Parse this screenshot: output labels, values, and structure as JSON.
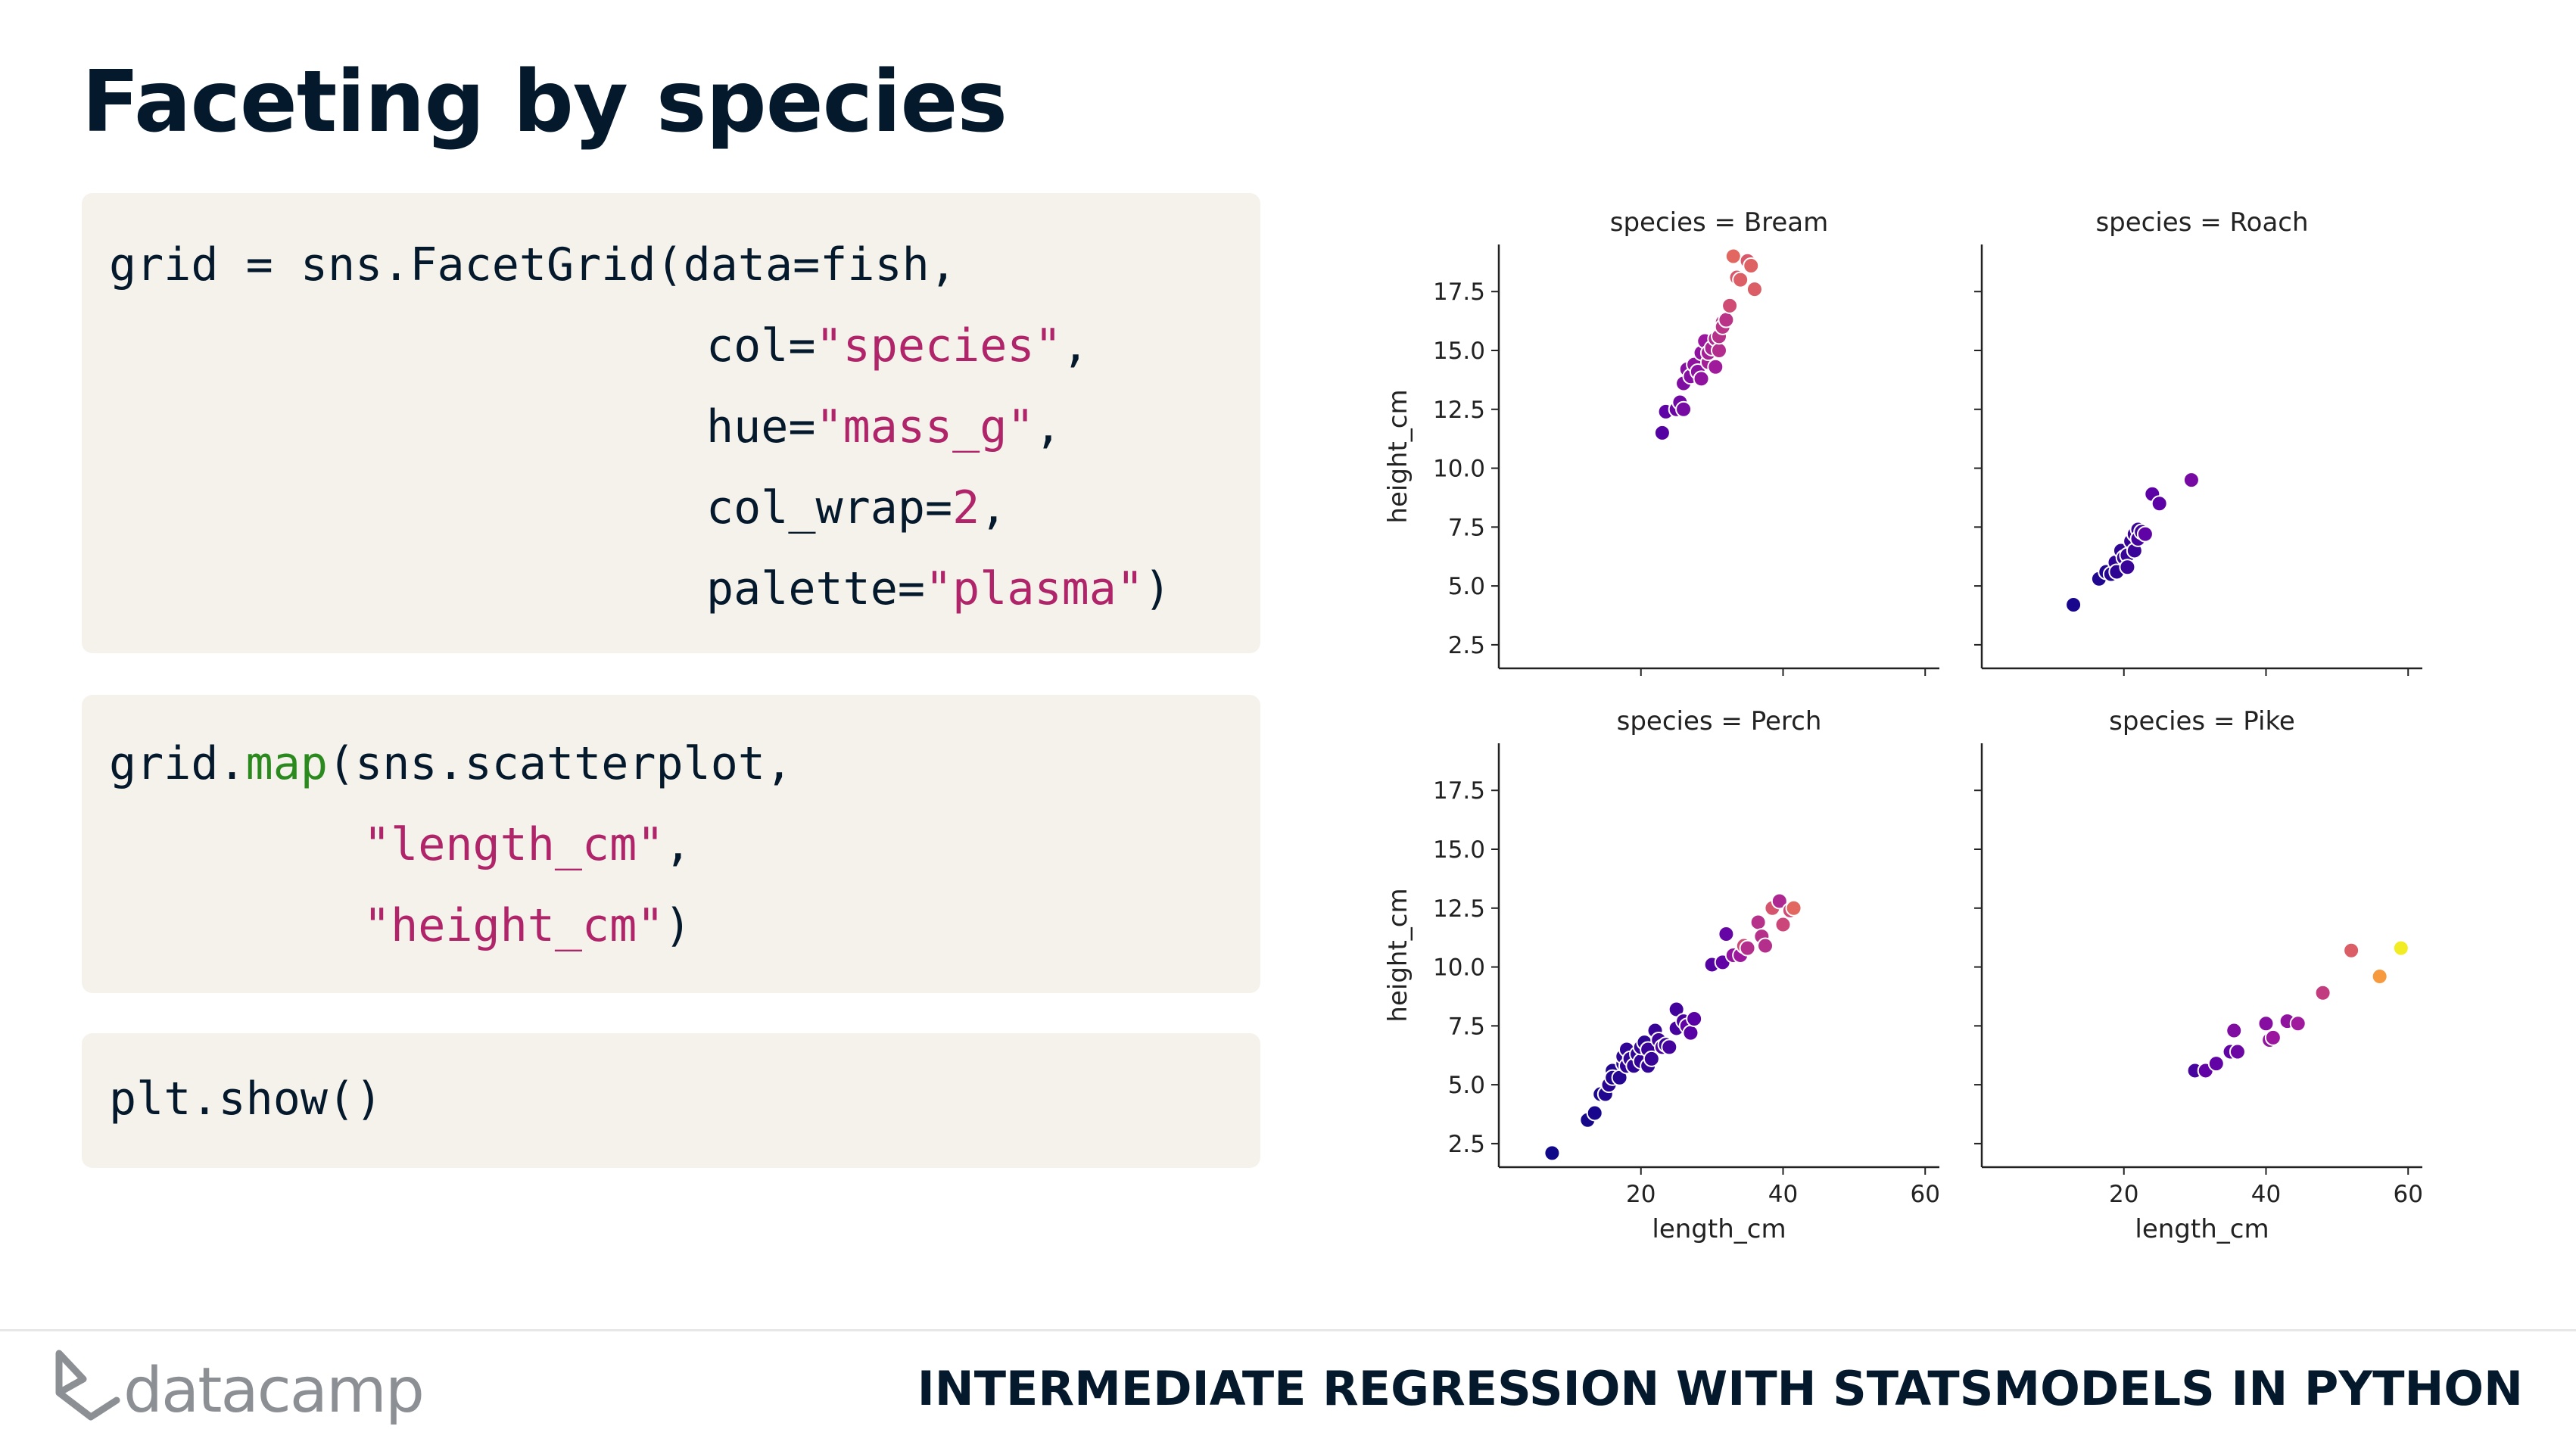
{
  "slide": {
    "title": "Faceting by species",
    "footer_brand": "datacamp",
    "footer_course": "INTERMEDIATE REGRESSION WITH STATSMODELS IN PYTHON"
  },
  "code": {
    "block1": {
      "l1": "grid = sns.FacetGrid(data=fish,",
      "l2_pre": "col=",
      "l2_str": "\"species\"",
      "l2_post": ",",
      "l3_pre": "hue=",
      "l3_str": "\"mass_g\"",
      "l3_post": ",",
      "l4_pre": "col_wrap=",
      "l4_num": "2",
      "l4_post": ",",
      "l5_pre": "palette=",
      "l5_str": "\"plasma\"",
      "l5_post": ")"
    },
    "block2": {
      "l1_pre": "grid.",
      "l1_fn": "map",
      "l1_post": "(sns.scatterplot,",
      "l2_str": "\"length_cm\"",
      "l2_post": ",",
      "l3_str": "\"height_cm\"",
      "l3_post": ")"
    },
    "block3": {
      "l1": "plt.show()"
    }
  },
  "chart_data": {
    "type": "scatter",
    "xlabel": "length_cm",
    "ylabel": "height_cm",
    "xlim": [
      0,
      62
    ],
    "ylim": [
      1.5,
      19.5
    ],
    "x_ticks": [
      20,
      40,
      60
    ],
    "y_ticks": [
      2.5,
      5.0,
      7.5,
      10.0,
      12.5,
      15.0,
      17.5
    ],
    "palette": "plasma",
    "colors": [
      "#0d0887",
      "#5c01a6",
      "#9c179e",
      "#cc4778",
      "#ed7953",
      "#fdb42f",
      "#f0f921"
    ],
    "hue_range": [
      0,
      1650
    ],
    "panels": [
      {
        "title": "species = Bream",
        "points": [
          [
            23.0,
            11.5,
            250
          ],
          [
            23.5,
            12.4,
            290
          ],
          [
            25.0,
            12.5,
            340
          ],
          [
            25.5,
            12.8,
            360
          ],
          [
            26.0,
            12.5,
            390
          ],
          [
            26.0,
            13.6,
            430
          ],
          [
            26.5,
            14.2,
            450
          ],
          [
            27.0,
            13.9,
            450
          ],
          [
            27.5,
            14.4,
            500
          ],
          [
            28.0,
            14.1,
            475
          ],
          [
            28.5,
            13.8,
            500
          ],
          [
            28.5,
            14.9,
            500
          ],
          [
            29.0,
            15.4,
            540
          ],
          [
            29.5,
            14.5,
            600
          ],
          [
            29.5,
            14.9,
            600
          ],
          [
            30.0,
            15.1,
            620
          ],
          [
            30.5,
            15.5,
            650
          ],
          [
            30.5,
            14.3,
            575
          ],
          [
            31.0,
            15.0,
            680
          ],
          [
            31.0,
            15.6,
            700
          ],
          [
            31.5,
            16.2,
            725
          ],
          [
            31.5,
            16.0,
            720
          ],
          [
            32.0,
            16.3,
            714
          ],
          [
            32.5,
            16.9,
            850
          ],
          [
            33.0,
            19.0,
            1000
          ],
          [
            33.5,
            18.1,
            920
          ],
          [
            34.0,
            18.0,
            955
          ],
          [
            35.0,
            18.8,
            925
          ],
          [
            35.5,
            18.6,
            975
          ],
          [
            36.0,
            17.6,
            950
          ]
        ]
      },
      {
        "title": "species = Roach",
        "points": [
          [
            12.9,
            4.2,
            40
          ],
          [
            16.5,
            5.3,
            69
          ],
          [
            17.5,
            5.6,
            78
          ],
          [
            18.2,
            5.5,
            87
          ],
          [
            18.8,
            6.0,
            120
          ],
          [
            19.0,
            5.6,
            110
          ],
          [
            19.6,
            6.5,
            120
          ],
          [
            20.0,
            6.2,
            150
          ],
          [
            20.5,
            6.3,
            145
          ],
          [
            20.5,
            5.8,
            160
          ],
          [
            21.0,
            6.9,
            140
          ],
          [
            21.5,
            6.5,
            160
          ],
          [
            21.5,
            7.2,
            169
          ],
          [
            22.0,
            7.4,
            161
          ],
          [
            22.0,
            7.0,
            200
          ],
          [
            22.5,
            7.3,
            180
          ],
          [
            23.0,
            7.2,
            290
          ],
          [
            24.0,
            8.9,
            272
          ],
          [
            25.0,
            8.5,
            270
          ],
          [
            29.5,
            9.5,
            390
          ]
        ]
      },
      {
        "title": "species = Perch",
        "points": [
          [
            7.5,
            2.1,
            5.9
          ],
          [
            12.5,
            3.5,
            32
          ],
          [
            13.5,
            3.8,
            40
          ],
          [
            14.3,
            4.6,
            51.5
          ],
          [
            15.0,
            4.6,
            70
          ],
          [
            15.5,
            5.0,
            100
          ],
          [
            16.0,
            5.6,
            78
          ],
          [
            16.0,
            5.3,
            80
          ],
          [
            17.0,
            5.3,
            85
          ],
          [
            17.5,
            5.9,
            85
          ],
          [
            17.5,
            6.2,
            110
          ],
          [
            18.0,
            5.8,
            115
          ],
          [
            18.0,
            6.5,
            125
          ],
          [
            18.5,
            6.1,
            130
          ],
          [
            19.0,
            5.8,
            120
          ],
          [
            19.5,
            6.3,
            120
          ],
          [
            20.0,
            6.0,
            130
          ],
          [
            20.0,
            6.6,
            135
          ],
          [
            20.5,
            6.8,
            110
          ],
          [
            21.0,
            5.8,
            130
          ],
          [
            21.0,
            6.5,
            150
          ],
          [
            21.5,
            6.1,
            145
          ],
          [
            22.0,
            7.3,
            150
          ],
          [
            22.5,
            6.9,
            170
          ],
          [
            23.0,
            6.6,
            225
          ],
          [
            23.5,
            6.7,
            145
          ],
          [
            24.0,
            6.6,
            188
          ],
          [
            25.0,
            8.2,
            180
          ],
          [
            25.0,
            7.4,
            197
          ],
          [
            26.0,
            7.7,
            218
          ],
          [
            26.5,
            7.5,
            300
          ],
          [
            27.0,
            7.2,
            260
          ],
          [
            27.5,
            7.8,
            265
          ],
          [
            30.0,
            10.1,
            250
          ],
          [
            31.5,
            10.2,
            300
          ],
          [
            32.0,
            11.4,
            320
          ],
          [
            33.0,
            10.5,
            514
          ],
          [
            34.0,
            10.5,
            556
          ],
          [
            34.5,
            10.9,
            840
          ],
          [
            35.0,
            10.8,
            685
          ],
          [
            36.5,
            11.9,
            700
          ],
          [
            37.0,
            11.3,
            700
          ],
          [
            37.5,
            10.9,
            690
          ],
          [
            38.5,
            12.5,
            900
          ],
          [
            39.5,
            12.8,
            650
          ],
          [
            40.0,
            11.8,
            820
          ],
          [
            41.0,
            12.4,
            850
          ],
          [
            41.5,
            12.5,
            1000
          ]
        ]
      },
      {
        "title": "species = Pike",
        "points": [
          [
            30.0,
            5.6,
            200
          ],
          [
            31.5,
            5.6,
            300
          ],
          [
            33.0,
            5.9,
            300
          ],
          [
            35.0,
            6.4,
            300
          ],
          [
            35.5,
            7.3,
            430
          ],
          [
            36.0,
            6.4,
            345
          ],
          [
            40.0,
            7.6,
            456
          ],
          [
            40.5,
            6.9,
            510
          ],
          [
            41.0,
            7.0,
            540
          ],
          [
            43.0,
            7.7,
            500
          ],
          [
            44.5,
            7.6,
            567
          ],
          [
            48.0,
            8.9,
            770
          ],
          [
            52.0,
            10.7,
            950
          ],
          [
            56.0,
            9.6,
            1250
          ],
          [
            59.0,
            10.8,
            1600
          ]
        ]
      }
    ]
  }
}
